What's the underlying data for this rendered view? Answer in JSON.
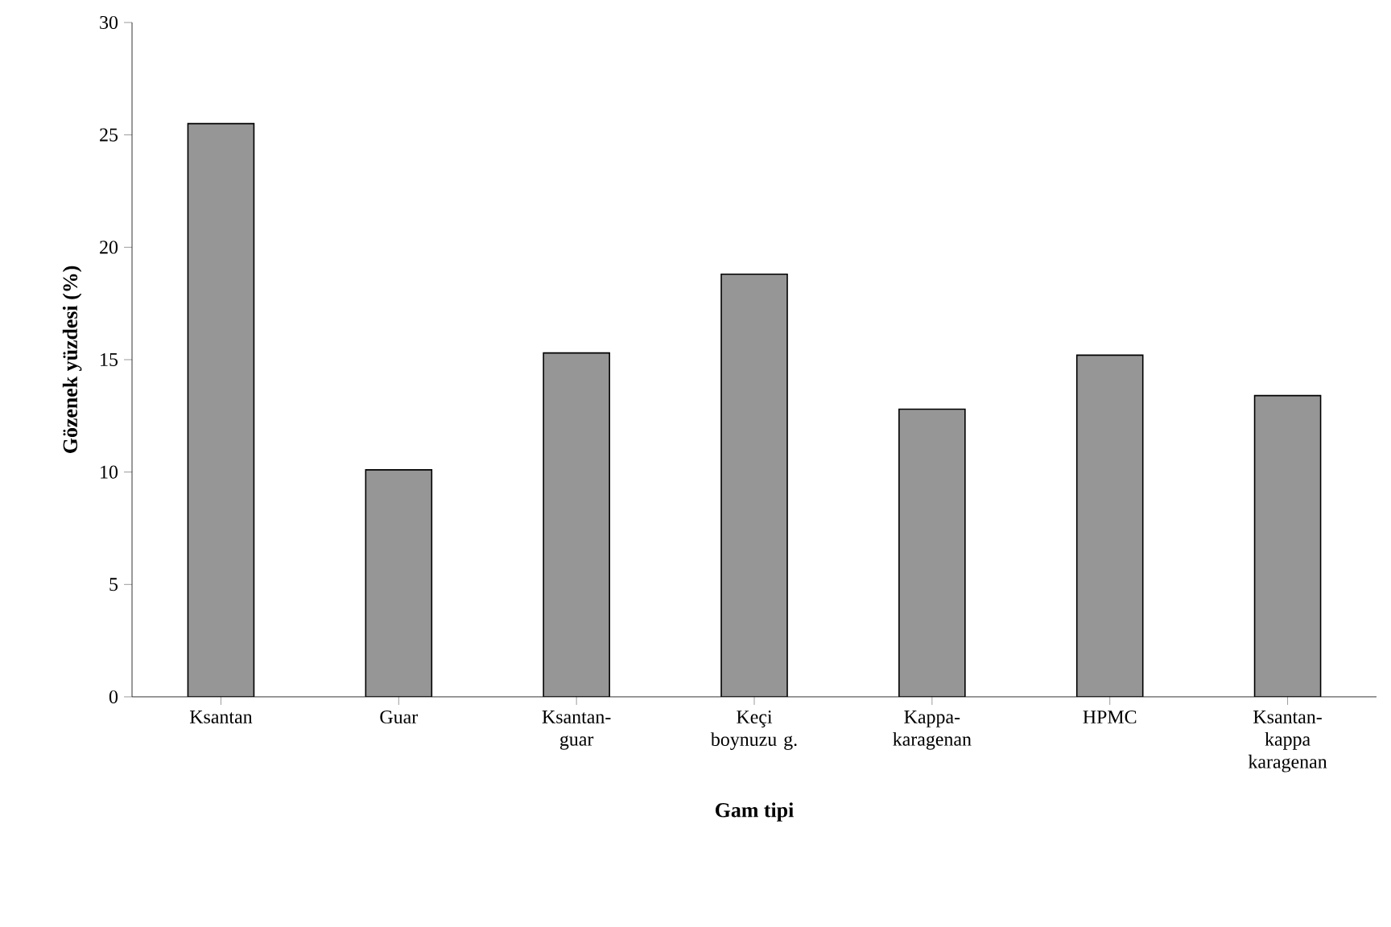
{
  "chart_data": {
    "type": "bar",
    "xlabel": "Gam tipi",
    "ylabel": "Gözenek yüzdesi (%)",
    "categories": [
      "Ksantan",
      "Guar",
      "Ksantan-guar",
      "Keçi boynuzu g.",
      "Kappa-karagenan",
      "HPMC",
      "Ksantan-kappa karagenan"
    ],
    "values": [
      25.5,
      10.1,
      15.3,
      18.8,
      12.8,
      15.2,
      13.4
    ],
    "color": "#969696",
    "ylim": [
      0,
      30
    ],
    "yticks": [
      0,
      5,
      10,
      15,
      20,
      25,
      30
    ],
    "grid": false
  }
}
